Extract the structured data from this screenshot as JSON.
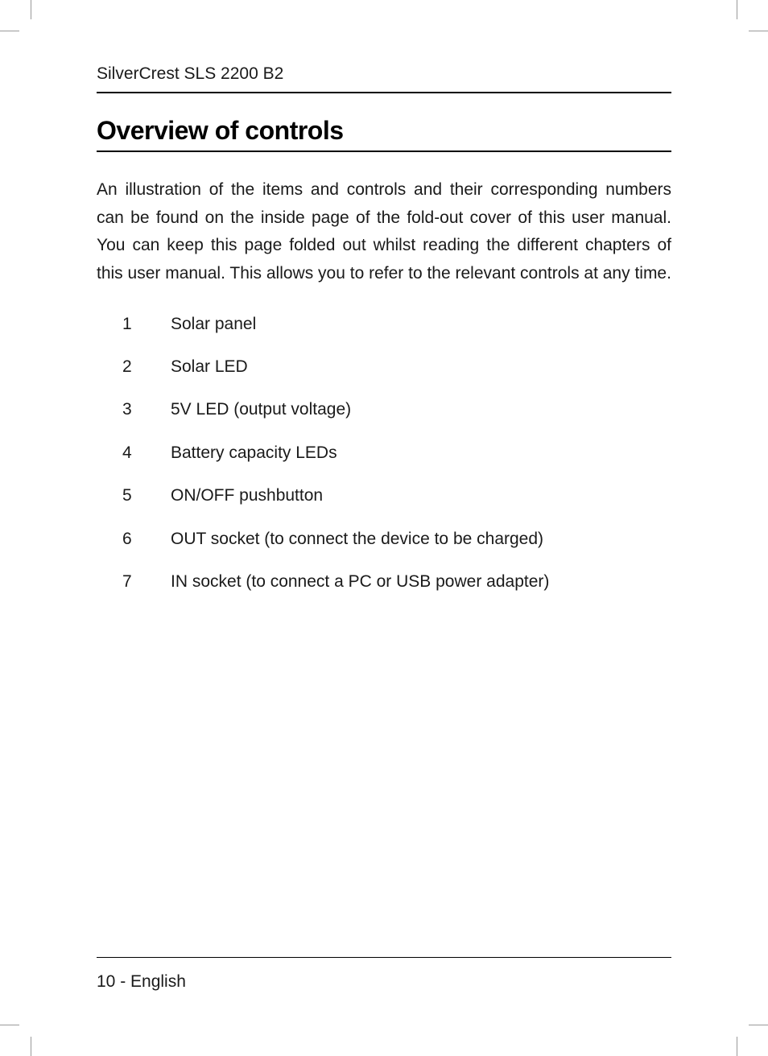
{
  "header": {
    "product_name": "SilverCrest SLS 2200 B2"
  },
  "section": {
    "title": "Overview of controls",
    "body_text": "An illustration of the items and controls and their corresponding numbers can be found on the inside page of the fold-out cover of this user manual. You can keep this page folded out whilst reading the different chapters of this user manual. This allows you to refer to the relevant controls at any time."
  },
  "controls": [
    {
      "number": "1",
      "label": "Solar panel"
    },
    {
      "number": "2",
      "label": "Solar LED"
    },
    {
      "number": "3",
      "label": "5V LED (output voltage)"
    },
    {
      "number": "4",
      "label": "Battery capacity LEDs"
    },
    {
      "number": "5",
      "label": "ON/OFF pushbutton"
    },
    {
      "number": "6",
      "label": "OUT socket (to connect the device to be charged)"
    },
    {
      "number": "7",
      "label": "IN socket (to connect a PC or USB power adapter)"
    }
  ],
  "footer": {
    "page_label": "10 - English"
  },
  "style": {
    "font_family": "Futura, Century Gothic, sans-serif",
    "body_font_size": 21,
    "title_font_size": 32,
    "text_color": "#1a1a1a",
    "rule_color": "#000000",
    "background_color": "#ffffff"
  }
}
